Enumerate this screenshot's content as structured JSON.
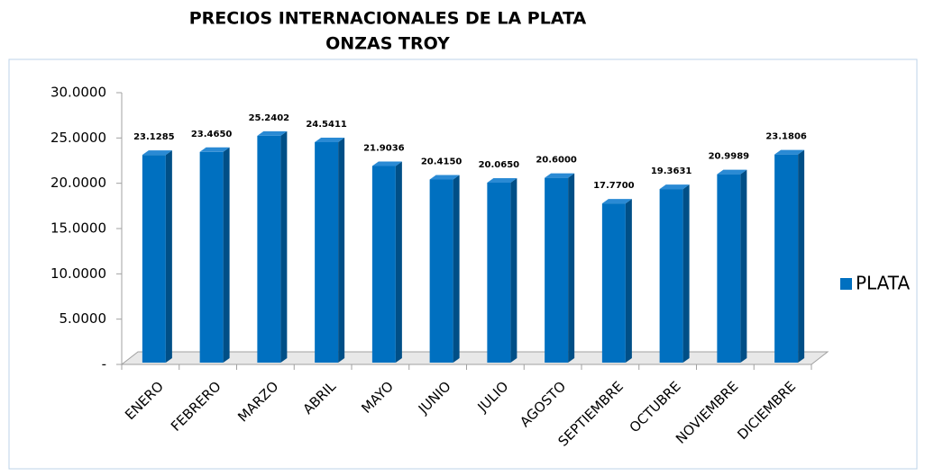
{
  "chart_data": {
    "type": "bar3d",
    "title": "PRECIOS INTERNACIONALES DE LA PLATA",
    "subtitle": "ONZAS TROY",
    "categories": [
      "ENERO",
      "FEBRERO",
      "MARZO",
      "ABRIL",
      "MAYO",
      "JUNIO",
      "JULIO",
      "AGOSTO",
      "SEPTIEMBRE",
      "OCTUBRE",
      "NOVIEMBRE",
      "DICIEMBRE"
    ],
    "series": [
      {
        "name": "PLATA",
        "color": "#0070c0",
        "values": [
          23.1285,
          23.465,
          25.2402,
          24.5411,
          21.9036,
          20.415,
          20.065,
          20.6,
          17.77,
          19.3631,
          20.9989,
          23.1806
        ],
        "value_labels": [
          "23.1285",
          "23.4650",
          "25.2402",
          "24.5411",
          "21.9036",
          "20.4150",
          "20.0650",
          "20.6000",
          "17.7700",
          "19.3631",
          "20.9989",
          "23.1806"
        ]
      }
    ],
    "ylim": [
      0,
      30
    ],
    "yticks": [
      {
        "value": 0,
        "label": "-"
      },
      {
        "value": 5,
        "label": "5.0000"
      },
      {
        "value": 10,
        "label": "10.0000"
      },
      {
        "value": 15,
        "label": "15.0000"
      },
      {
        "value": 20,
        "label": "20.0000"
      },
      {
        "value": 25,
        "label": "25.0000"
      },
      {
        "value": 30,
        "label": "30.0000"
      }
    ],
    "legend": "right",
    "grid": false
  }
}
